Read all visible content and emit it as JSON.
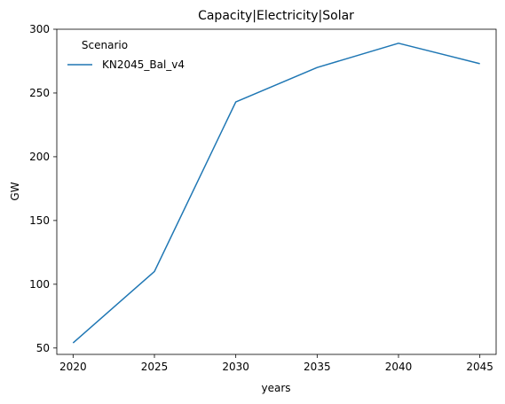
{
  "chart_data": {
    "type": "line",
    "title": "Capacity|Electricity|Solar",
    "xlabel": "years",
    "ylabel": "GW",
    "x": [
      2020,
      2025,
      2030,
      2035,
      2040,
      2045
    ],
    "xlim": [
      2019,
      2046
    ],
    "ylim": [
      45,
      300
    ],
    "xticks": [
      2020,
      2025,
      2030,
      2035,
      2040,
      2045
    ],
    "yticks": [
      50,
      100,
      150,
      200,
      250,
      300
    ],
    "grid": false,
    "legend": {
      "title": "Scenario",
      "placement": "top-left"
    },
    "series": [
      {
        "name": "KN2045_Bal_v4",
        "color": "#1f77b4",
        "values": [
          54,
          110,
          243,
          270,
          289,
          273
        ]
      }
    ]
  }
}
